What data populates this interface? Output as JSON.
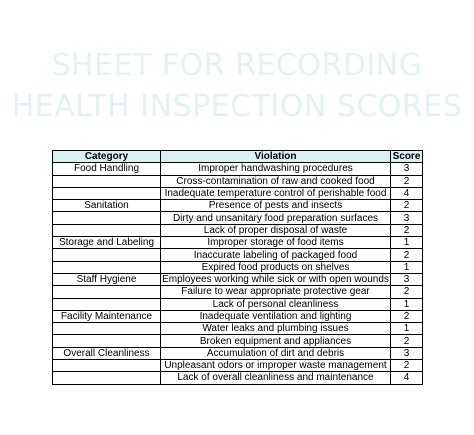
{
  "title": {
    "line1": "SHEET FOR RECORDING",
    "line2": "HEALTH INSPECTION SCORES"
  },
  "table": {
    "headers": [
      "Category",
      "Violation",
      "Score"
    ],
    "rows": [
      {
        "category": "Food Handling",
        "violation": "Improper handwashing procedures",
        "score": "3"
      },
      {
        "category": "",
        "violation": "Cross-contamination of raw and cooked food",
        "score": "2"
      },
      {
        "category": "",
        "violation": "Inadequate temperature control of perishable food",
        "score": "4"
      },
      {
        "category": "Sanitation",
        "violation": "Presence of pests and insects",
        "score": "2"
      },
      {
        "category": "",
        "violation": "Dirty and unsanitary food preparation surfaces",
        "score": "3"
      },
      {
        "category": "",
        "violation": "Lack of proper disposal of waste",
        "score": "2"
      },
      {
        "category": "Storage and Labeling",
        "violation": "Improper storage of food items",
        "score": "1"
      },
      {
        "category": "",
        "violation": "Inaccurate labeling of packaged food",
        "score": "2"
      },
      {
        "category": "",
        "violation": "Expired food products on shelves",
        "score": "1"
      },
      {
        "category": "Staff Hygiene",
        "violation": "Employees working while sick or with open wounds",
        "score": "3"
      },
      {
        "category": "",
        "violation": "Failure to wear appropriate protective gear",
        "score": "2"
      },
      {
        "category": "",
        "violation": "Lack of personal cleanliness",
        "score": "1"
      },
      {
        "category": "Facility Maintenance",
        "violation": "Inadequate ventilation and lighting",
        "score": "2"
      },
      {
        "category": "",
        "violation": "Water leaks and plumbing issues",
        "score": "1"
      },
      {
        "category": "",
        "violation": "Broken equipment and appliances",
        "score": "2"
      },
      {
        "category": "Overall Cleanliness",
        "violation": "Accumulation of dirt and debris",
        "score": "3"
      },
      {
        "category": "",
        "violation": "Unpleasant odors or improper waste management",
        "score": "2"
      },
      {
        "category": "",
        "violation": "Lack of overall cleanliness and maintenance",
        "score": "4"
      }
    ]
  }
}
